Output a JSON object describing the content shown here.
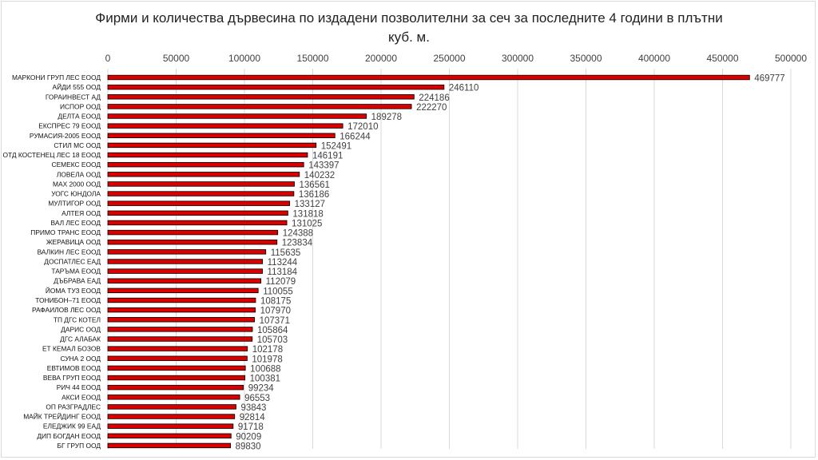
{
  "chart_data": {
    "type": "bar",
    "orientation": "horizontal",
    "title_line1": "Фирми и количества дървесина по издадени позволителни за сеч за последните 4 години в плътни",
    "title_line2": "куб. м.",
    "categories": [
      "МАРКОНИ ГРУП ЛЕС ЕООД",
      "АЙДИ 555 ООД",
      "ГОРАИНВЕСТ АД",
      "ИСПОР ООД",
      "ДЕЛТА ЕООД",
      "ЕКСПРЕС 79 ЕООД",
      "РУМАСИЯ-2005 ЕООД",
      "СТИЛ МС ООД",
      "ОТД КОСТЕНЕЦ ЛЕС  18 ЕООД",
      "СЕМЕКС ЕООД",
      "ЛОВЕЛА ООД",
      "МАХ 2000 ООД",
      "УОГС ЮНДОЛА",
      "МУЛТИГОР ООД",
      "АЛТЕЯ ООД",
      "ВАЛ ЛЕС ЕООД",
      "ПРИМО ТРАНС ЕООД",
      "ЖЕРАВИЦА ООД",
      "ВАЛКИН ЛЕС ЕООД",
      "ДОСПАТЛЕС ЕАД",
      "ТАРЪМА ЕООД",
      "ДЪБРАВА ЕАД",
      "ЙОМА ТУЗ ЕООД",
      "ТОНИБОН–71 ЕООД",
      "РАФАИЛОВ ЛЕС ООД",
      "ТП ДГС КОТЕЛ",
      "ДАРИС ООД",
      "ДГС АЛАБАК",
      "ЕТ КЕМАЛ БОЗОВ",
      "СУНА 2 ООД",
      "ЕВТИМОВ ЕООД",
      "ВЕВА ГРУП ЕООД",
      "РИЧ 44 ЕООД",
      "АКСИ ЕООД",
      "ОП РАЗГРАДЛЕС",
      "МАЙК ТРЕЙДИНГ ЕООД",
      "ЕЛЕДЖИК 99 ЕАД",
      "ДИП БОГДАН ЕООД",
      "БГ ГРУП ООД"
    ],
    "values": [
      469777,
      246110,
      224186,
      222270,
      189278,
      172010,
      166244,
      152491,
      146191,
      143397,
      140232,
      136561,
      136186,
      133127,
      131818,
      131025,
      124388,
      123834,
      115635,
      113244,
      113184,
      112079,
      110055,
      108175,
      107970,
      107371,
      105864,
      105703,
      102178,
      101978,
      100688,
      100381,
      99234,
      96553,
      93843,
      92814,
      91718,
      90209,
      89830
    ],
    "xlim": [
      0,
      500000
    ],
    "x_ticks": [
      0,
      50000,
      100000,
      150000,
      200000,
      250000,
      300000,
      350000,
      400000,
      450000,
      500000
    ],
    "x_axis_position": "top",
    "grid": true,
    "data_labels": true,
    "bar_color": "#d90000",
    "bar_edge_color": "#000000",
    "gridline_color": "#d9d9d9"
  }
}
